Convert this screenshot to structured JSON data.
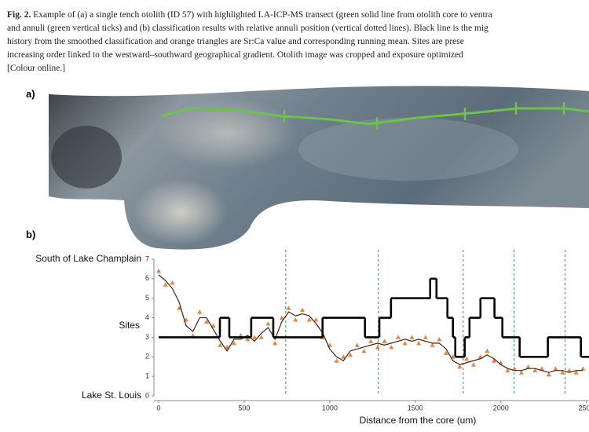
{
  "caption": {
    "figure_label": "Fig. 2.",
    "lines": [
      "Example of (a) a single tench otolith (ID 57) with highlighted LA-ICP-MS transect (green solid line from otolith core to ventra",
      "and annuli (green vertical ticks) and (b) classification results with relative annuli position (vertical dotted lines). Black line is the mig",
      "history from the smoothed classification and orange triangles are Sr:Ca value and corresponding running mean. Sites are prese",
      "increasing order linked to the westward–southward geographical gradient. Otolith image was cropped and exposure optimized",
      "[Colour online.]"
    ]
  },
  "panel_a": {
    "label": "a)"
  },
  "panel_b": {
    "label": "b)"
  },
  "chart_data": {
    "type": "line",
    "x_label": "Distance from the core (um)",
    "y_label": "Sites",
    "y_end_labels": [
      "Lake St. Louis",
      "South of Lake Champlain"
    ],
    "xlim": [
      0,
      2520
    ],
    "xticks": [
      0,
      500,
      1000,
      1500,
      2000,
      2500
    ],
    "ylim": [
      0,
      7
    ],
    "yticks": [
      0,
      1,
      2,
      3,
      4,
      5,
      6,
      7
    ],
    "x": [
      0,
      40,
      80,
      120,
      160,
      200,
      240,
      280,
      320,
      360,
      400,
      440,
      480,
      520,
      560,
      600,
      640,
      680,
      720,
      760,
      800,
      840,
      880,
      920,
      960,
      1000,
      1040,
      1080,
      1120,
      1160,
      1200,
      1240,
      1280,
      1320,
      1360,
      1400,
      1440,
      1480,
      1520,
      1560,
      1600,
      1640,
      1680,
      1720,
      1760,
      1800,
      1840,
      1880,
      1920,
      1960,
      2000,
      2040,
      2080,
      2120,
      2160,
      2200,
      2240,
      2280,
      2320,
      2360,
      2400,
      2440,
      2480
    ],
    "series": [
      {
        "type": "scatter",
        "color": "#e8843c",
        "values": [
          6.4,
          5.7,
          5.8,
          4.5,
          3.9,
          3.1,
          4.3,
          3.8,
          3.6,
          2.6,
          2.5,
          2.7,
          3.1,
          2.9,
          3.0,
          3.0,
          3.7,
          2.7,
          4.0,
          4.5,
          3.9,
          4.4,
          3.9,
          3.9,
          3.0,
          2.6,
          1.8,
          2.0,
          2.1,
          2.6,
          2.3,
          2.8,
          2.5,
          2.8,
          2.5,
          3.0,
          2.7,
          3.0,
          2.7,
          3.0,
          2.6,
          2.9,
          2.2,
          2.0,
          1.5,
          1.9,
          1.6,
          2.0,
          2.3,
          1.8,
          1.7,
          1.3,
          1.4,
          1.2,
          1.5,
          1.3,
          1.4,
          1.1,
          1.4,
          1.2,
          1.3,
          1.2,
          1.4
        ]
      },
      {
        "type": "line",
        "color": "#3a2418",
        "values": [
          6.2,
          5.9,
          5.5,
          4.8,
          3.6,
          3.3,
          4.0,
          4.0,
          3.4,
          2.8,
          2.3,
          2.9,
          2.9,
          3.1,
          2.8,
          3.2,
          3.5,
          2.9,
          3.8,
          4.3,
          4.1,
          4.2,
          4.1,
          3.7,
          3.2,
          2.4,
          2.0,
          1.8,
          2.3,
          2.4,
          2.5,
          2.6,
          2.7,
          2.6,
          2.7,
          2.8,
          2.9,
          2.8,
          2.9,
          2.8,
          2.7,
          2.7,
          2.4,
          1.8,
          1.6,
          1.7,
          1.8,
          1.9,
          2.1,
          1.9,
          1.6,
          1.4,
          1.3,
          1.3,
          1.4,
          1.4,
          1.3,
          1.2,
          1.3,
          1.3,
          1.2,
          1.3,
          1.3
        ]
      }
    ],
    "migration": {
      "color": "#000000",
      "x": [
        0,
        358,
        413,
        541,
        670,
        958,
        1206,
        1290,
        1358,
        1587,
        1624,
        1688,
        1720,
        1734,
        1789,
        1817,
        1881,
        1963,
        2009,
        2110,
        2275,
        2468
      ],
      "values": [
        3,
        4,
        3,
        4,
        3,
        4,
        3,
        4,
        5,
        6,
        5,
        4,
        3,
        2,
        3,
        4,
        5,
        4,
        3,
        2,
        3,
        2
      ]
    },
    "annuli": {
      "color": "#2e8b6e",
      "x": [
        743,
        1284,
        1780,
        2078,
        2376
      ]
    }
  }
}
